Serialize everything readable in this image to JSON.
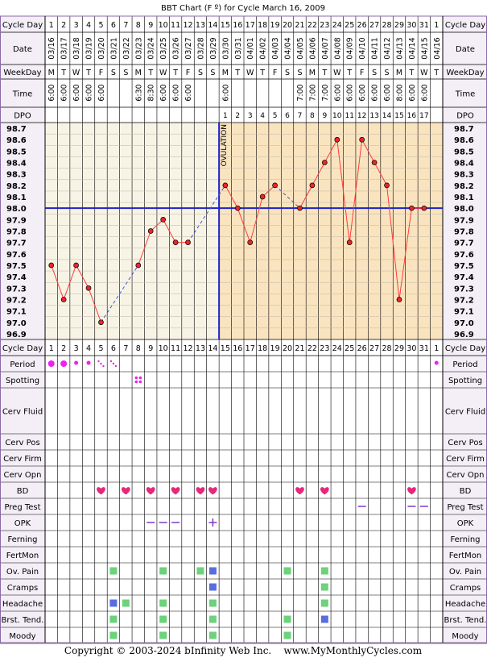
{
  "title": "BBT Chart (F º) for Cycle March 16, 2009",
  "labels": {
    "cycle_day": "Cycle Day",
    "date": "Date",
    "weekday": "WeekDay",
    "time": "Time",
    "dpo": "DPO",
    "ovulation": "OVULATION"
  },
  "footer": "Copyright © 2003-2024 bInfinity Web Inc.    www.MyMonthlyCycles.com",
  "colors": {
    "grid_bg": "#f7f4e6",
    "post_ov_bg": "#fae4bf",
    "header_bg": "#f4eef7",
    "border": "#8b6aa6",
    "line": "#ff3b3b",
    "dot": "#e8262b",
    "blue": "#1f22c4",
    "period": "#ee22ee",
    "heart": "#e8267a",
    "green": "#6cd27b",
    "blue_square": "#5a6de0",
    "purple": "#7a3acc"
  },
  "days": [
    "1",
    "2",
    "3",
    "4",
    "5",
    "6",
    "7",
    "8",
    "9",
    "10",
    "11",
    "12",
    "13",
    "14",
    "15",
    "16",
    "17",
    "18",
    "19",
    "20",
    "21",
    "22",
    "23",
    "24",
    "25",
    "26",
    "27",
    "28",
    "29",
    "30",
    "31",
    "1"
  ],
  "dates": [
    "03/16",
    "03/17",
    "03/18",
    "03/19",
    "03/20",
    "03/21",
    "03/22",
    "03/23",
    "03/24",
    "03/25",
    "03/26",
    "03/27",
    "03/28",
    "03/29",
    "03/30",
    "03/31",
    "04/01",
    "04/02",
    "04/03",
    "04/04",
    "04/05",
    "04/06",
    "04/07",
    "04/08",
    "04/09",
    "04/10",
    "04/11",
    "04/12",
    "04/13",
    "04/14",
    "04/15",
    "04/16"
  ],
  "weekdays": [
    "M",
    "T",
    "W",
    "T",
    "F",
    "S",
    "S",
    "M",
    "T",
    "W",
    "T",
    "F",
    "S",
    "S",
    "M",
    "T",
    "W",
    "T",
    "F",
    "S",
    "S",
    "M",
    "T",
    "W",
    "T",
    "F",
    "S",
    "S",
    "M",
    "T",
    "W",
    "T"
  ],
  "times": [
    "6:00",
    "6:00",
    "6:00",
    "6:00",
    "6:00",
    "",
    "",
    "6:30",
    "8:30",
    "6:00",
    "6:00",
    "6:00",
    "",
    "",
    "6:00",
    "",
    "",
    "",
    "",
    "",
    "7:00",
    "7:00",
    "7:00",
    "6:00",
    "6:00",
    "6:00",
    "6:00",
    "6:00",
    "8:00",
    "6:00",
    "6:00",
    ""
  ],
  "dpo": [
    "",
    "",
    "",
    "",
    "",
    "",
    "",
    "",
    "",
    "",
    "",
    "",
    "",
    "",
    "1",
    "2",
    "3",
    "4",
    "5",
    "6",
    "7",
    "8",
    "9",
    "10",
    "11",
    "12",
    "13",
    "14",
    "15",
    "16",
    "17",
    ""
  ],
  "chart_data": {
    "type": "line",
    "x": [
      1,
      2,
      3,
      4,
      5,
      6,
      7,
      8,
      9,
      10,
      11,
      12,
      13,
      14,
      15,
      16,
      17,
      18,
      19,
      20,
      21,
      22,
      23,
      24,
      25,
      26,
      27,
      28,
      29,
      30,
      31
    ],
    "y": [
      97.5,
      97.2,
      97.5,
      97.3,
      97.0,
      null,
      null,
      97.5,
      97.8,
      97.9,
      97.7,
      97.7,
      null,
      null,
      98.2,
      98.0,
      97.7,
      98.1,
      98.2,
      null,
      98.0,
      98.2,
      98.4,
      98.6,
      97.7,
      98.6,
      98.4,
      98.2,
      97.2,
      98.0,
      98.0
    ],
    "ylim": [
      96.9,
      98.7
    ],
    "yticks": [
      "98.7",
      "98.6",
      "98.5",
      "98.4",
      "98.3",
      "98.2",
      "98.1",
      "98.0",
      "97.9",
      "97.8",
      "97.7",
      "97.6",
      "97.5",
      "97.4",
      "97.3",
      "97.2",
      "97.1",
      "97.0",
      "96.9"
    ],
    "coverline": 98.0,
    "ovulation_day": 14,
    "grid": true
  },
  "symptom_rows": [
    {
      "label": "Period",
      "marks": [
        {
          "day": 1,
          "type": "period-lg"
        },
        {
          "day": 2,
          "type": "period-lg"
        },
        {
          "day": 3,
          "type": "period-sm"
        },
        {
          "day": 4,
          "type": "period-sm"
        },
        {
          "day": 5,
          "type": "period-spot"
        },
        {
          "day": 6,
          "type": "period-spot"
        },
        {
          "day": 32,
          "type": "period-sm"
        }
      ]
    },
    {
      "label": "Spotting",
      "marks": [
        {
          "day": 8,
          "type": "spotting"
        }
      ]
    },
    {
      "label": "Cerv Fluid",
      "marks": []
    },
    {
      "label": "Cerv Pos",
      "marks": []
    },
    {
      "label": "Cerv Firm",
      "marks": []
    },
    {
      "label": "Cerv Opn",
      "marks": []
    },
    {
      "label": "BD",
      "marks": [
        {
          "day": 5,
          "type": "heart"
        },
        {
          "day": 7,
          "type": "heart"
        },
        {
          "day": 9,
          "type": "heart"
        },
        {
          "day": 11,
          "type": "heart"
        },
        {
          "day": 13,
          "type": "heart"
        },
        {
          "day": 14,
          "type": "heart"
        },
        {
          "day": 21,
          "type": "heart"
        },
        {
          "day": 23,
          "type": "heart"
        },
        {
          "day": 30,
          "type": "heart"
        }
      ]
    },
    {
      "label": "Preg Test",
      "marks": [
        {
          "day": 26,
          "type": "dash"
        },
        {
          "day": 30,
          "type": "dash"
        },
        {
          "day": 31,
          "type": "dash"
        }
      ]
    },
    {
      "label": "OPK",
      "marks": [
        {
          "day": 9,
          "type": "dash"
        },
        {
          "day": 10,
          "type": "dash"
        },
        {
          "day": 11,
          "type": "dash"
        },
        {
          "day": 14,
          "type": "plus"
        }
      ]
    },
    {
      "label": "Ferning",
      "marks": []
    },
    {
      "label": "FertMon",
      "marks": []
    },
    {
      "label": "Ov. Pain",
      "marks": [
        {
          "day": 6,
          "type": "green"
        },
        {
          "day": 10,
          "type": "green"
        },
        {
          "day": 13,
          "type": "green"
        },
        {
          "day": 14,
          "type": "blue"
        },
        {
          "day": 20,
          "type": "green"
        },
        {
          "day": 23,
          "type": "green"
        }
      ]
    },
    {
      "label": "Cramps",
      "marks": [
        {
          "day": 14,
          "type": "blue"
        },
        {
          "day": 23,
          "type": "green"
        }
      ]
    },
    {
      "label": "Headache",
      "marks": [
        {
          "day": 6,
          "type": "blue"
        },
        {
          "day": 7,
          "type": "green"
        },
        {
          "day": 10,
          "type": "green"
        },
        {
          "day": 14,
          "type": "green"
        },
        {
          "day": 23,
          "type": "green"
        }
      ]
    },
    {
      "label": "Brst. Tend.",
      "marks": [
        {
          "day": 6,
          "type": "green"
        },
        {
          "day": 10,
          "type": "green"
        },
        {
          "day": 14,
          "type": "green"
        },
        {
          "day": 20,
          "type": "green"
        },
        {
          "day": 23,
          "type": "blue"
        }
      ]
    },
    {
      "label": "Moody",
      "marks": [
        {
          "day": 6,
          "type": "green"
        },
        {
          "day": 10,
          "type": "green"
        },
        {
          "day": 14,
          "type": "green"
        },
        {
          "day": 20,
          "type": "green"
        }
      ]
    }
  ]
}
